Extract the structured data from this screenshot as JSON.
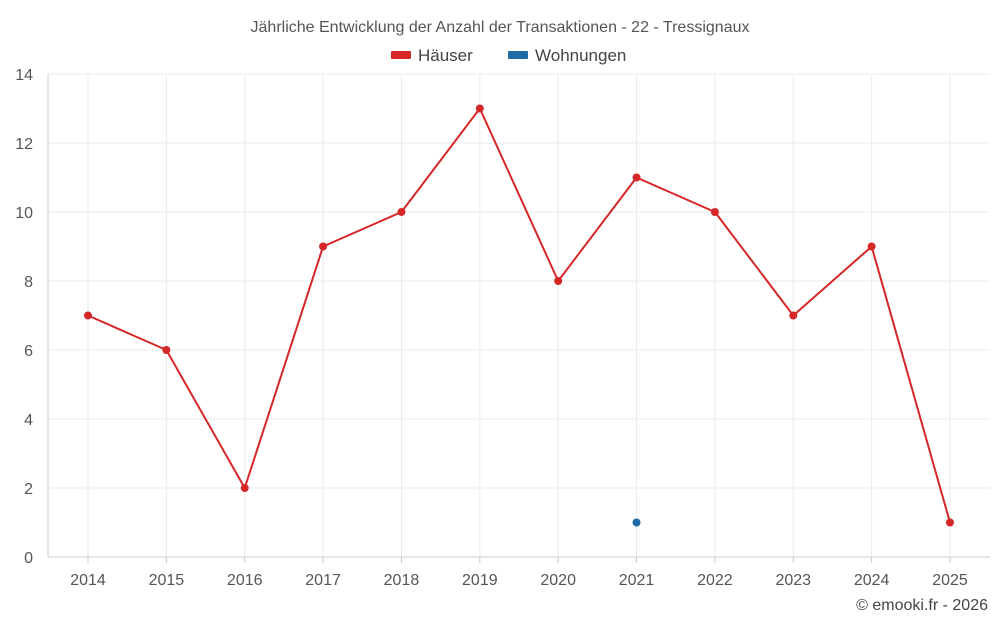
{
  "chart_data": {
    "type": "line",
    "title": "Jährliche Entwicklung der Anzahl der Transaktionen - 22 - Tressignaux",
    "xlabel": "",
    "ylabel": "",
    "categories": [
      "2014",
      "2015",
      "2016",
      "2017",
      "2018",
      "2019",
      "2020",
      "2021",
      "2022",
      "2023",
      "2024",
      "2025"
    ],
    "ylim": [
      0,
      14
    ],
    "yticks": [
      0,
      2,
      4,
      6,
      8,
      10,
      12,
      14
    ],
    "grid": true,
    "legend_position": "top-center",
    "series": [
      {
        "name": "Häuser",
        "color": "#d62728",
        "values": [
          7,
          6,
          2,
          9,
          10,
          13,
          8,
          11,
          10,
          7,
          9,
          1
        ]
      },
      {
        "name": "Wohnungen",
        "color": "#1f6aa5",
        "values": [
          null,
          null,
          null,
          null,
          null,
          null,
          null,
          1,
          null,
          null,
          null,
          null
        ]
      }
    ]
  },
  "copyright": "© emooki.fr - 2026"
}
